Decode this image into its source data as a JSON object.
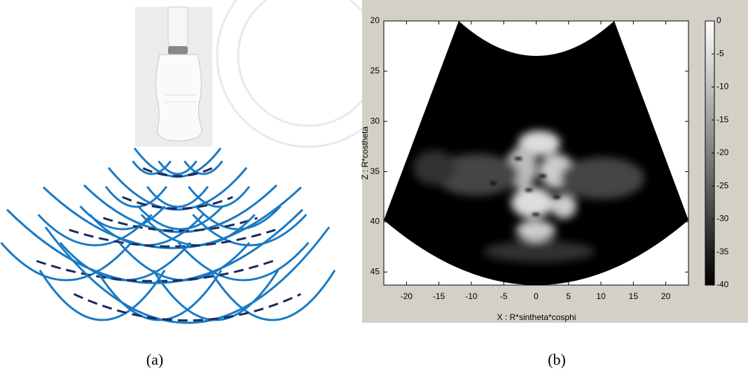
{
  "figure": {
    "captions": [
      "(a)",
      "(b)"
    ]
  },
  "chart_data": {
    "type": "image",
    "xlabel": "X : R*sintheta*cosphi",
    "ylabel": "Z : R*costheta",
    "xlim": [
      -23.5,
      23.5
    ],
    "ylim": [
      20,
      46.3
    ],
    "yreverse": true,
    "xticks": [
      -20,
      -15,
      -10,
      -5,
      0,
      5,
      10,
      15,
      20
    ],
    "yticks": [
      20,
      25,
      30,
      35,
      40,
      45
    ],
    "colorbar": {
      "lim": [
        -40,
        0
      ],
      "ticks": [
        0,
        -5,
        -10,
        -15,
        -20,
        -25,
        -30,
        -35,
        -40
      ]
    }
  }
}
